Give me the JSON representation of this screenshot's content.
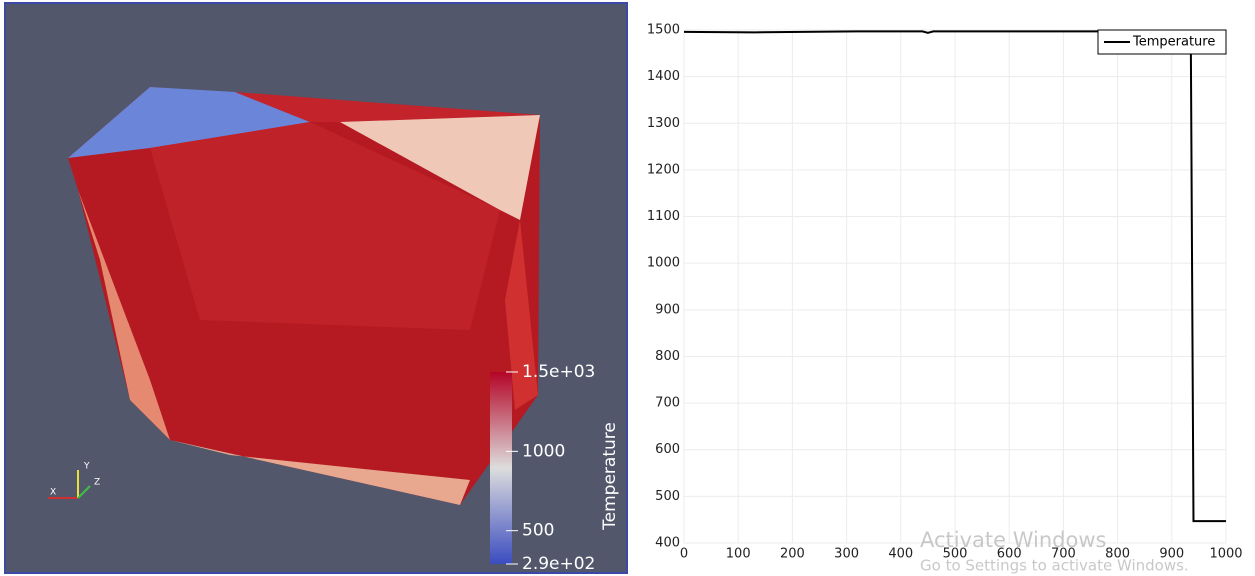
{
  "chart_data": {
    "type": "line",
    "x": [
      0,
      130,
      320,
      440,
      450,
      460,
      935,
      940,
      1000
    ],
    "series": [
      {
        "name": "Temperature",
        "color": "#000000",
        "values": [
          1496,
          1495,
          1497,
          1497,
          1494,
          1497,
          1497,
          447,
          447
        ]
      }
    ],
    "xlim": [
      0,
      1000
    ],
    "xticks": [
      0,
      100,
      200,
      300,
      400,
      500,
      600,
      700,
      800,
      900,
      1000
    ],
    "ylim": [
      400,
      1500
    ],
    "yticks": [
      400,
      500,
      600,
      700,
      800,
      900,
      1000,
      1100,
      1200,
      1300,
      1400,
      1500
    ],
    "grid": true,
    "legend": "top-right"
  },
  "color_legend": {
    "title": "Temperature",
    "range": [
      290,
      1500
    ],
    "ticks": [
      {
        "value": 1500,
        "label": "1.5e+03"
      },
      1000,
      500,
      {
        "value": 290,
        "label": "2.9e+02"
      }
    ]
  },
  "orientation_axes": {
    "labels": [
      "X",
      "Y",
      "Z"
    ]
  },
  "watermark": {
    "title": "Activate Windows",
    "subtitle": "Go to Settings to activate Windows."
  }
}
